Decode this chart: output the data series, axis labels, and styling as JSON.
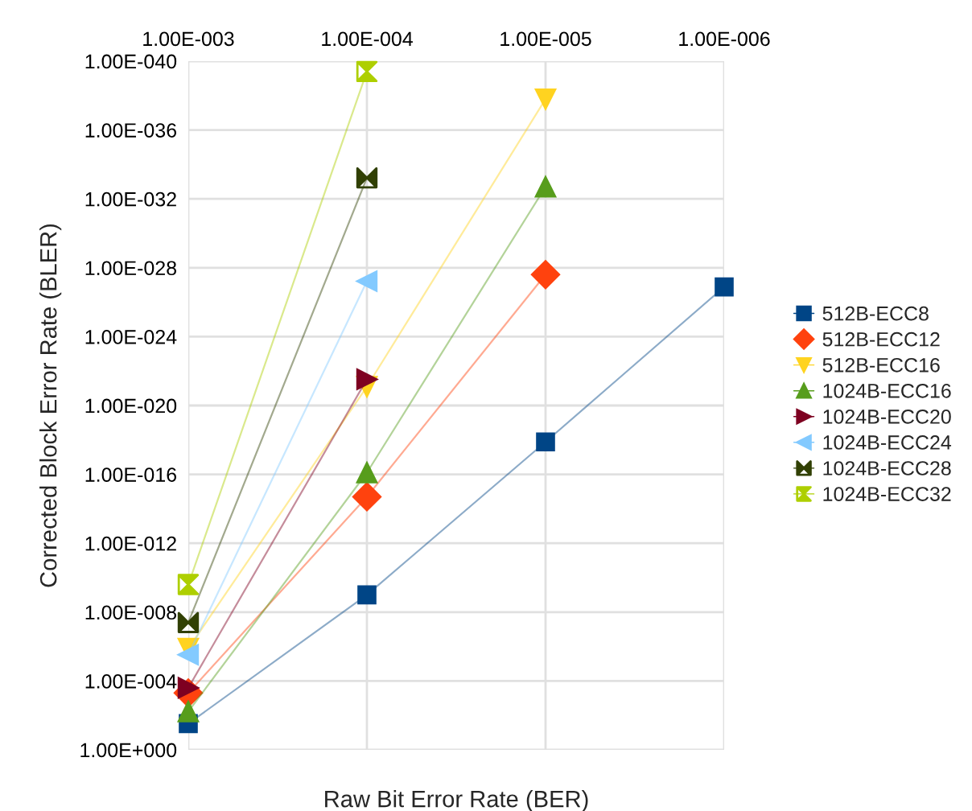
{
  "chart_data": {
    "type": "line",
    "xlabel": "Raw Bit Error Rate (BER)",
    "ylabel": "Corrected Block Error Rate (BLER)",
    "x": [
      0.001,
      0.0001,
      1e-05,
      1e-06
    ],
    "log": "xy",
    "grid": true,
    "legend": "right",
    "line_style": "solid",
    "xlim": [
      0.001,
      1e-06
    ],
    "xticks": [
      {
        "value": 0.001,
        "label": "1.00E-003"
      },
      {
        "value": 0.0001,
        "label": "1.00E-004"
      },
      {
        "value": 1e-05,
        "label": "1.00E-005"
      },
      {
        "value": 1e-06,
        "label": "1.00E-006"
      }
    ],
    "ylim": [
      1,
      1e-40
    ],
    "yticks": [
      {
        "value": 1,
        "label": "1.00E+000"
      },
      {
        "value": 0.0001,
        "label": "1.00E-004"
      },
      {
        "value": 1e-08,
        "label": "1.00E-008"
      },
      {
        "value": 1e-12,
        "label": "1.00E-012"
      },
      {
        "value": 1e-16,
        "label": "1.00E-016"
      },
      {
        "value": 1e-20,
        "label": "1.00E-020"
      },
      {
        "value": 1e-24,
        "label": "1.00E-024"
      },
      {
        "value": 1e-28,
        "label": "1.00E-028"
      },
      {
        "value": 1e-32,
        "label": "1.00E-032"
      },
      {
        "value": 1e-36,
        "label": "1.00E-036"
      },
      {
        "value": 1e-40,
        "label": "1.00E-040"
      }
    ],
    "series": [
      {
        "name": "512B-ECC8",
        "color": "#004586",
        "marker": "square",
        "values": [
          0.03,
          1e-09,
          1.3e-18,
          1.3e-27
        ]
      },
      {
        "name": "512B-ECC12",
        "color": "#ff420e",
        "marker": "diamond",
        "values": [
          0.0005,
          2e-15,
          2.5e-28,
          null
        ]
      },
      {
        "name": "512B-ECC16",
        "color": "#ffd320",
        "marker": "triangle_down",
        "values": [
          1.3e-06,
          8e-22,
          1.6e-38,
          null
        ]
      },
      {
        "name": "1024B-ECC16",
        "color": "#579d1c",
        "marker": "triangle",
        "values": [
          0.006,
          8e-17,
          2e-33,
          null
        ]
      },
      {
        "name": "1024B-ECC20",
        "color": "#7e0021",
        "marker": "triangle_right",
        "values": [
          0.00025,
          3e-22,
          null,
          null
        ]
      },
      {
        "name": "1024B-ECC24",
        "color": "#83caff",
        "marker": "triangle_left",
        "values": [
          3e-06,
          6e-28,
          null,
          null
        ]
      },
      {
        "name": "1024B-ECC28",
        "color": "#314004",
        "marker": "cross",
        "values": [
          4e-08,
          6e-34,
          null,
          null
        ]
      },
      {
        "name": "1024B-ECC32",
        "color": "#aecf00",
        "marker": "cross",
        "values": [
          2.5e-10,
          4e-40,
          null,
          null
        ]
      }
    ]
  }
}
